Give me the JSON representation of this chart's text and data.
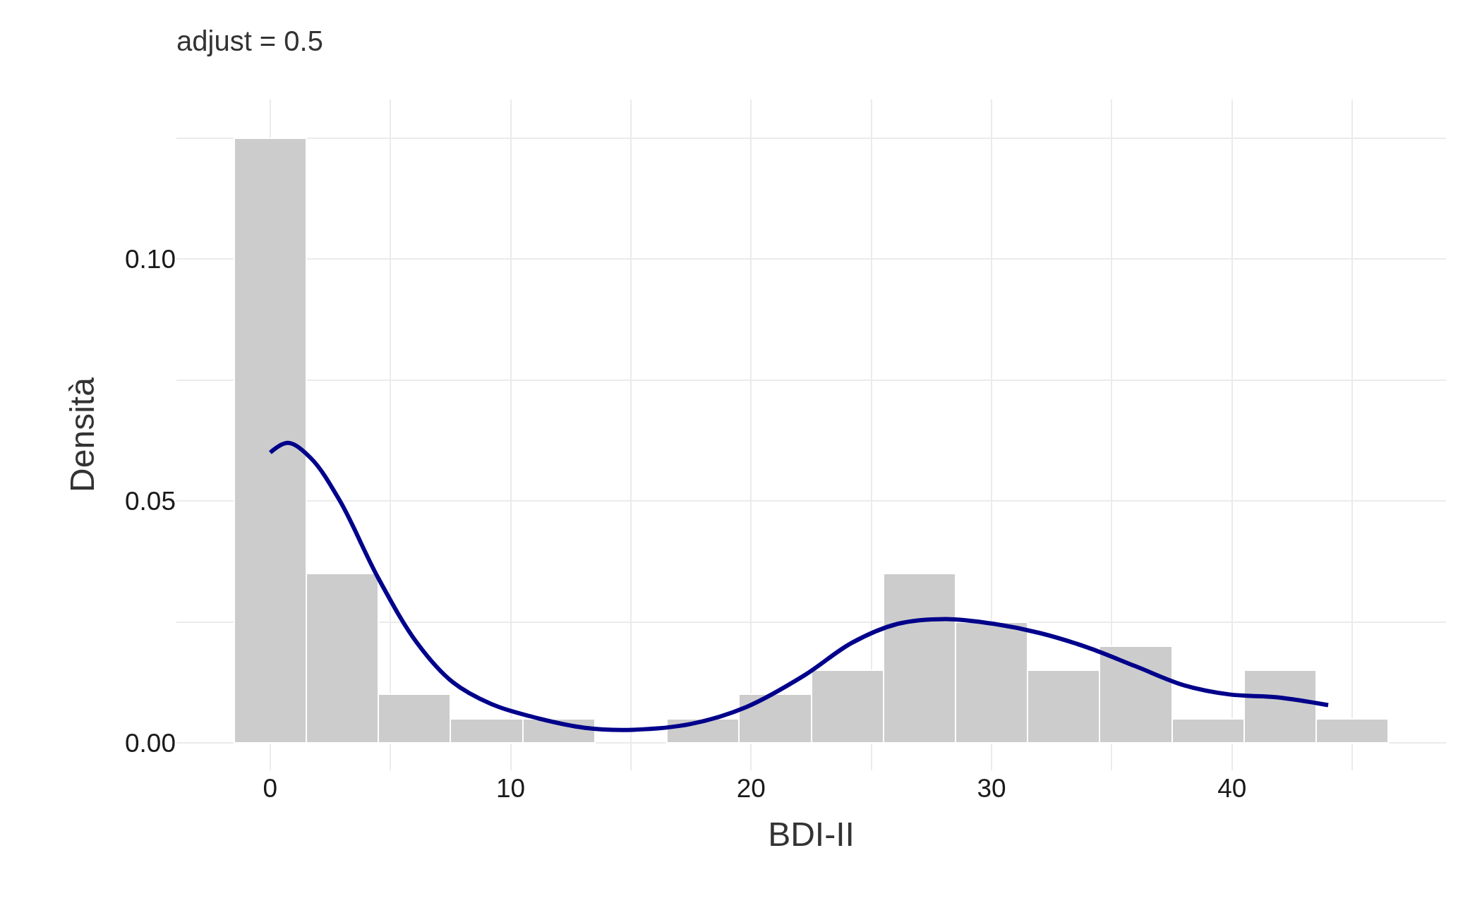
{
  "chart_data": {
    "type": "histogram",
    "title": "adjust = 0.5",
    "xlabel": "BDI-II",
    "ylabel": "Densità",
    "bins": [
      -1.5,
      1.5,
      4.5,
      7.5,
      10.5,
      13.5,
      16.5,
      19.5,
      22.5,
      25.5,
      28.5,
      31.5,
      34.5,
      37.5,
      40.5,
      43.5,
      46.5
    ],
    "values": [
      0.125,
      0.035,
      0.01,
      0.005,
      0.005,
      0,
      0.005,
      0.01,
      0.015,
      0.035,
      0.025,
      0.015,
      0.02,
      0.005,
      0.015,
      0.005
    ],
    "color": "#cccccc",
    "series": [
      {
        "type": "line",
        "color": "#00008b",
        "x": [
          0,
          0.75,
          1.7,
          2.9,
          4.5,
          6.1,
          7.6,
          9.2,
          10.8,
          13.1,
          15.1,
          17.5,
          19.8,
          22.2,
          24.2,
          26.1,
          28.1,
          30.1,
          32.0,
          34.0,
          36.0,
          38.0,
          39.9,
          41.9,
          44.0
        ],
        "values": [
          0.06,
          0.062,
          0.0588,
          0.05,
          0.034,
          0.0207,
          0.0125,
          0.008,
          0.0055,
          0.0031,
          0.0027,
          0.0039,
          0.0074,
          0.0139,
          0.0207,
          0.0246,
          0.0256,
          0.0246,
          0.0227,
          0.0197,
          0.0158,
          0.0119,
          0.01,
          0.0094,
          0.0078
        ]
      }
    ],
    "xlim": [
      -3.9,
      48.9
    ],
    "xticks": [
      0,
      {
        "value": 5,
        "label": null
      },
      10,
      {
        "value": 15,
        "label": null
      },
      20,
      {
        "value": 25,
        "label": null
      },
      30,
      {
        "value": 35,
        "label": null
      },
      40,
      {
        "value": 45,
        "label": null
      }
    ],
    "ylim": [
      -0.0057,
      0.133
    ],
    "yticks": [
      {
        "value": 0,
        "label": "0.00"
      },
      {
        "value": 0.025,
        "label": null
      },
      {
        "value": 0.05,
        "label": "0.05"
      },
      {
        "value": 0.075,
        "label": null
      },
      {
        "value": 0.1,
        "label": "0.10"
      },
      {
        "value": 0.125,
        "label": null
      }
    ],
    "grid": true
  }
}
